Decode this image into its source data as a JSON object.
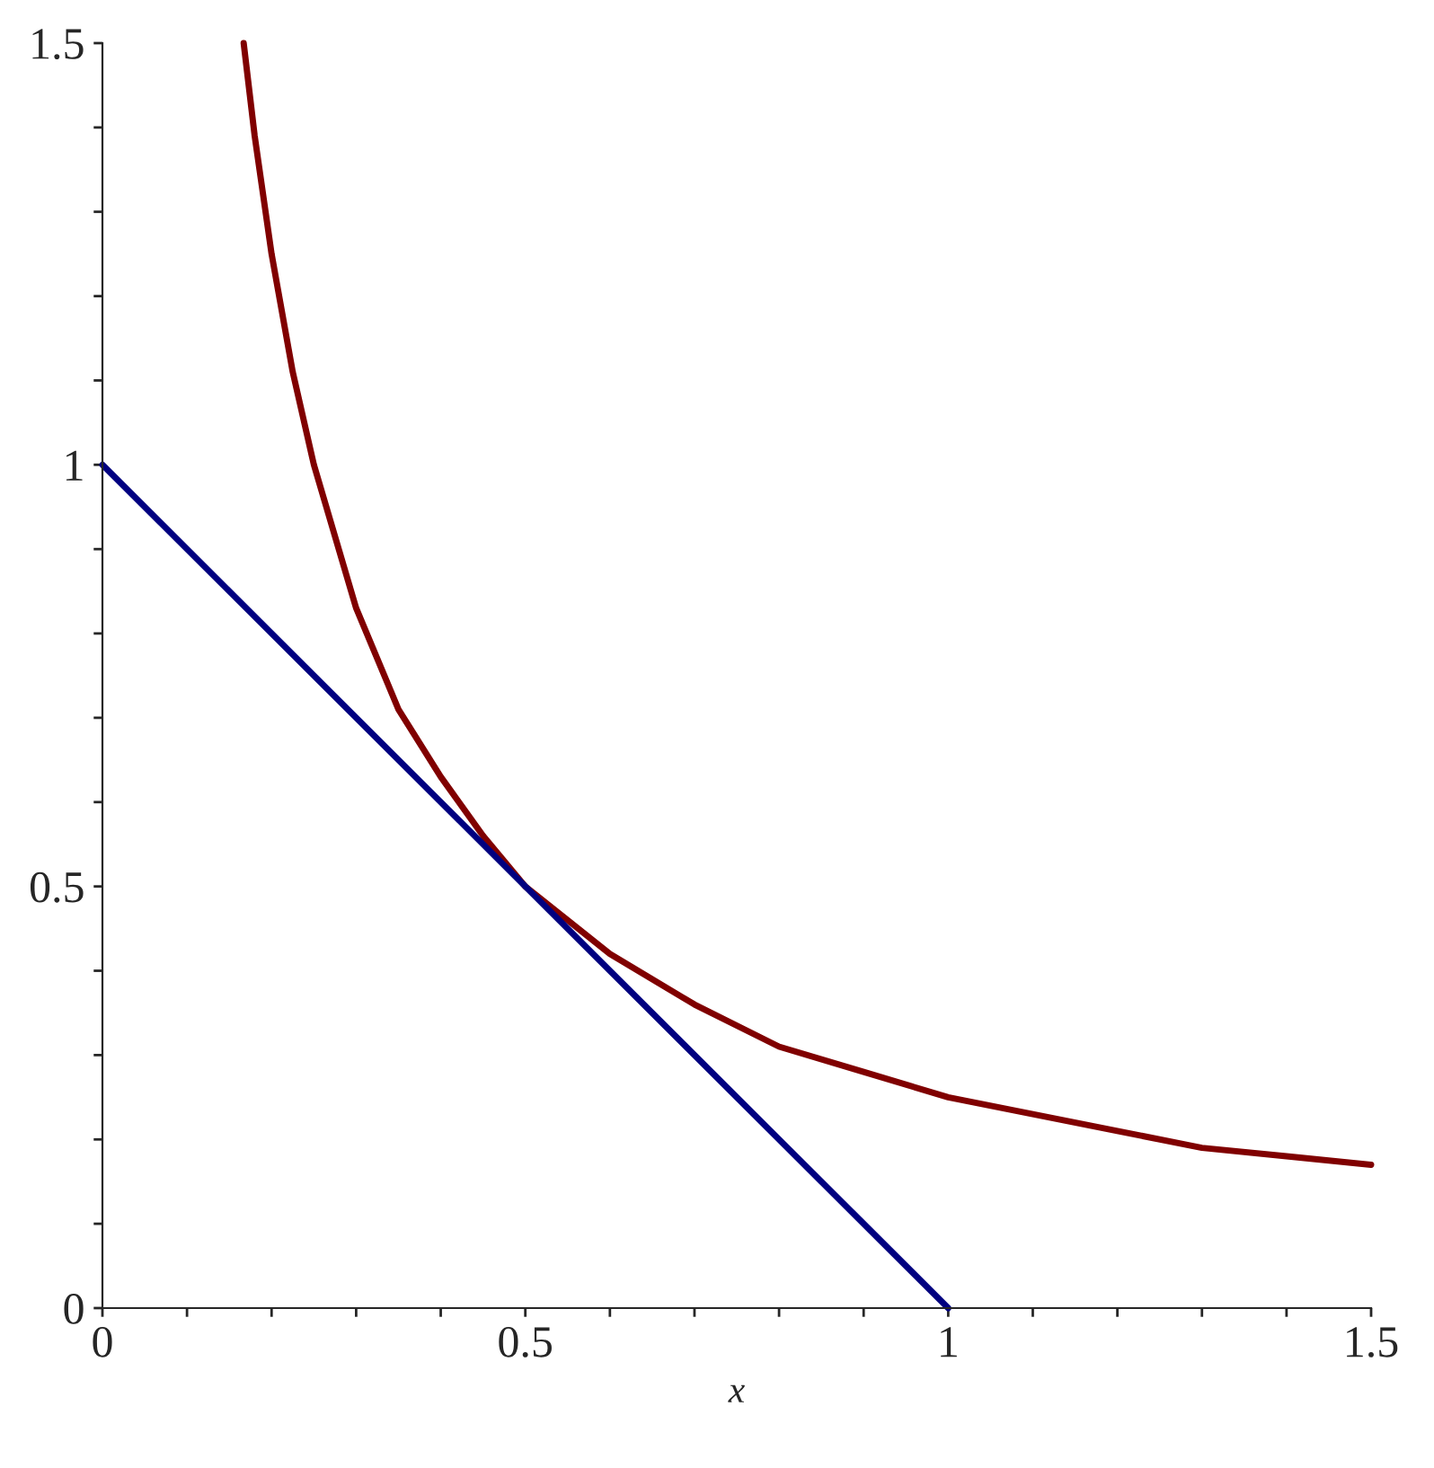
{
  "chart_data": {
    "type": "line",
    "xlabel": "x",
    "series": [
      {
        "color": "#800000",
        "x": [
          0.167,
          0.18,
          0.2,
          0.225,
          0.25,
          0.3,
          0.35,
          0.4,
          0.45,
          0.5,
          0.6,
          0.7,
          0.8,
          0.9,
          1.0,
          1.1,
          1.2,
          1.3,
          1.4,
          1.5
        ],
        "values": [
          1.5,
          1.39,
          1.25,
          1.11,
          1.0,
          0.83,
          0.71,
          0.63,
          0.56,
          0.5,
          0.42,
          0.36,
          0.31,
          0.28,
          0.25,
          0.23,
          0.21,
          0.19,
          0.18,
          0.17
        ]
      },
      {
        "color": "#000080",
        "x": [
          0,
          1
        ],
        "values": [
          1,
          0
        ]
      }
    ],
    "xlim": [
      0,
      1.5
    ],
    "ylim": [
      0,
      1.5
    ],
    "xticks": [
      0,
      {
        "value": 0.1,
        "label": null
      },
      {
        "value": 0.2,
        "label": null
      },
      {
        "value": 0.3,
        "label": null
      },
      {
        "value": 0.4,
        "label": null
      },
      0.5,
      {
        "value": 0.6,
        "label": null
      },
      {
        "value": 0.7,
        "label": null
      },
      {
        "value": 0.8,
        "label": null
      },
      {
        "value": 0.9,
        "label": null
      },
      1,
      {
        "value": 1.1,
        "label": null
      },
      {
        "value": 1.2,
        "label": null
      },
      {
        "value": 1.3,
        "label": null
      },
      {
        "value": 1.4,
        "label": null
      },
      1.5
    ],
    "yticks": [
      0,
      {
        "value": 0.1,
        "label": null
      },
      {
        "value": 0.2,
        "label": null
      },
      {
        "value": 0.3,
        "label": null
      },
      {
        "value": 0.4,
        "label": null
      },
      0.5,
      {
        "value": 0.6,
        "label": null
      },
      {
        "value": 0.7,
        "label": null
      },
      {
        "value": 0.8,
        "label": null
      },
      {
        "value": 0.9,
        "label": null
      },
      1,
      {
        "value": 1.1,
        "label": null
      },
      {
        "value": 1.2,
        "label": null
      },
      {
        "value": 1.3,
        "label": null
      },
      {
        "value": 1.4,
        "label": null
      },
      1.5
    ],
    "line_style": "solid",
    "marker": "none",
    "grid": false,
    "legend": false
  }
}
